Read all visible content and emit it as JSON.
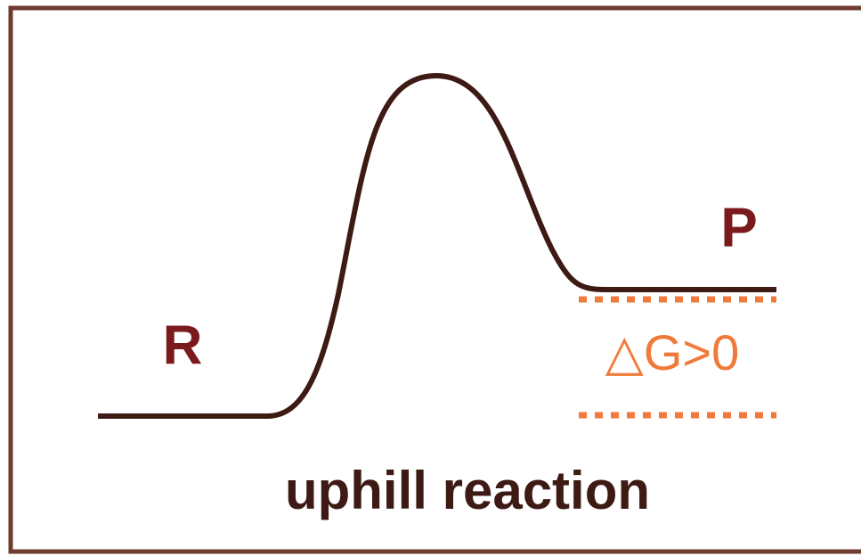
{
  "reactant_label": "R",
  "product_label": "P",
  "delta_g_label": "△G>0",
  "caption": "uphill reaction"
}
